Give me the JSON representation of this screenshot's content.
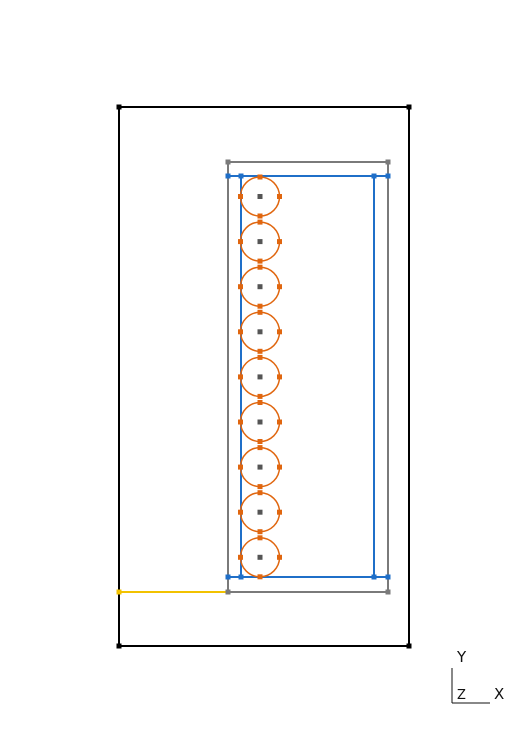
{
  "axis_triad": {
    "y_label": "Y",
    "z_label": "Z",
    "x_label": "X"
  },
  "colors": {
    "outer_frame": "#000000",
    "gray_outline": "#7a7a7a",
    "blue_outline": "#1f6fc8",
    "circles": "#e0660f",
    "yellow_line": "#f2c200",
    "center_point": "#555555"
  },
  "circles": {
    "count": 9
  }
}
